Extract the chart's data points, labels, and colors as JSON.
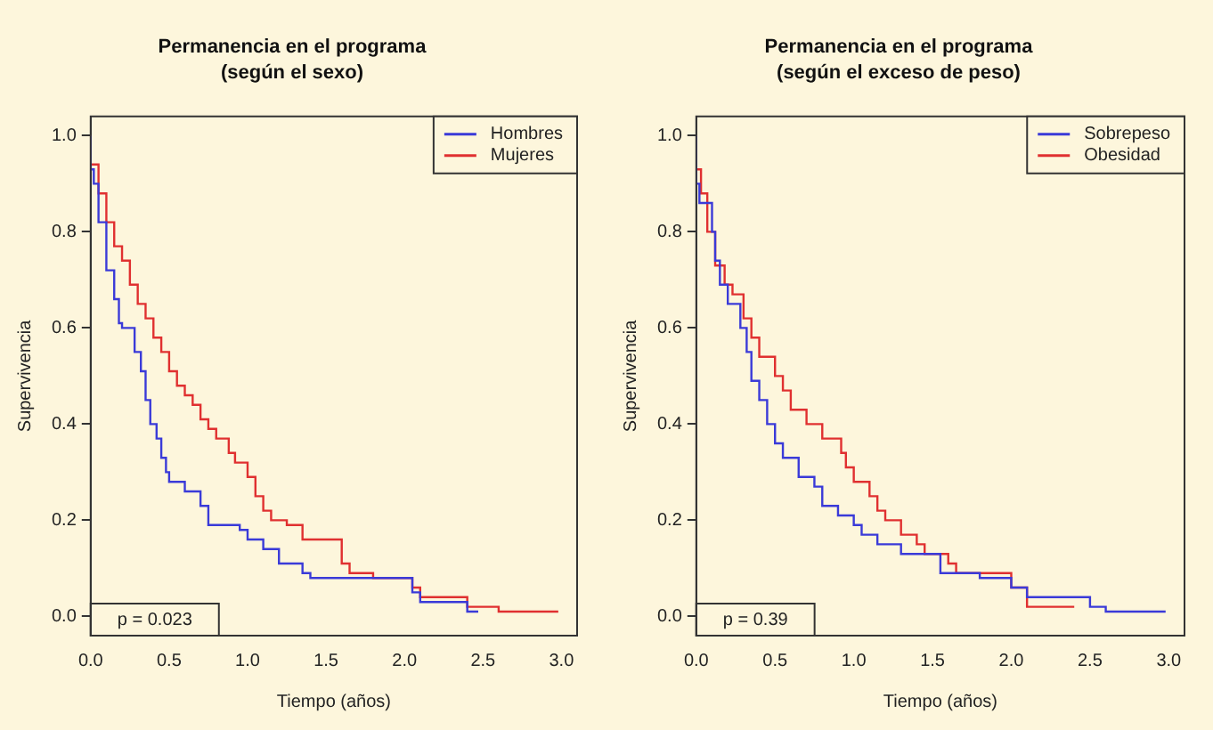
{
  "chart_data": [
    {
      "type": "step",
      "title": "Permanencia en el programa",
      "subtitle": "(según el sexo)",
      "xlabel": "Tiempo (años)",
      "ylabel": "Supervivencia",
      "legend": "top right",
      "grid": false,
      "annotations": [
        "p = 0.023"
      ],
      "xlim": [
        0,
        3.1
      ],
      "ylim": [
        -0.04,
        1.04
      ],
      "xticks": [
        {
          "value": 0,
          "label": "0.0"
        },
        {
          "value": 0.5,
          "label": "0.5"
        },
        {
          "value": 1,
          "label": "1.0"
        },
        {
          "value": 1.5,
          "label": "1.5"
        },
        {
          "value": 2,
          "label": "2.0"
        },
        {
          "value": 2.5,
          "label": "2.5"
        },
        {
          "value": 3,
          "label": "3.0"
        }
      ],
      "yticks": [
        {
          "value": 0,
          "label": "0.0"
        },
        {
          "value": 0.2,
          "label": "0.2"
        },
        {
          "value": 0.4,
          "label": "0.4"
        },
        {
          "value": 0.6,
          "label": "0.6"
        },
        {
          "value": 0.8,
          "label": "0.8"
        },
        {
          "value": 1,
          "label": "1.0"
        }
      ],
      "series": [
        {
          "name": "Hombres",
          "color": "#3a3ad8",
          "x": [
            0,
            0.02,
            0.05,
            0.1,
            0.15,
            0.18,
            0.2,
            0.28,
            0.32,
            0.35,
            0.38,
            0.42,
            0.45,
            0.48,
            0.5,
            0.6,
            0.7,
            0.75,
            0.95,
            1.0,
            1.1,
            1.2,
            1.35,
            1.4,
            2.05,
            2.1,
            2.4,
            2.47
          ],
          "values": [
            1.0,
            0.93,
            0.9,
            0.82,
            0.72,
            0.66,
            0.61,
            0.6,
            0.55,
            0.51,
            0.45,
            0.4,
            0.37,
            0.33,
            0.3,
            0.28,
            0.26,
            0.23,
            0.19,
            0.18,
            0.16,
            0.14,
            0.11,
            0.09,
            0.08,
            0.05,
            0.03,
            0.01
          ]
        },
        {
          "name": "Mujeres",
          "color": "#e03030",
          "x": [
            0,
            0.05,
            0.1,
            0.15,
            0.2,
            0.25,
            0.3,
            0.35,
            0.4,
            0.45,
            0.5,
            0.55,
            0.6,
            0.65,
            0.7,
            0.75,
            0.8,
            0.88,
            0.92,
            1.0,
            1.05,
            1.1,
            1.15,
            1.25,
            1.35,
            1.6,
            1.65,
            1.8,
            2.05,
            2.1,
            2.4,
            2.6,
            2.98
          ],
          "values": [
            1.0,
            0.94,
            0.88,
            0.82,
            0.77,
            0.74,
            0.69,
            0.65,
            0.62,
            0.58,
            0.55,
            0.51,
            0.48,
            0.46,
            0.44,
            0.41,
            0.39,
            0.37,
            0.34,
            0.32,
            0.29,
            0.25,
            0.22,
            0.2,
            0.19,
            0.16,
            0.11,
            0.09,
            0.08,
            0.06,
            0.04,
            0.02,
            0.01
          ]
        }
      ]
    },
    {
      "type": "step",
      "title": "Permanencia en el programa",
      "subtitle": "(según el exceso de peso)",
      "xlabel": "Tiempo (años)",
      "ylabel": "Supervivencia",
      "legend": "top right",
      "grid": false,
      "annotations": [
        "p = 0.39"
      ],
      "xlim": [
        0,
        3.1
      ],
      "ylim": [
        -0.04,
        1.04
      ],
      "xticks": [
        {
          "value": 0,
          "label": "0.0"
        },
        {
          "value": 0.5,
          "label": "0.5"
        },
        {
          "value": 1,
          "label": "1.0"
        },
        {
          "value": 1.5,
          "label": "1.5"
        },
        {
          "value": 2,
          "label": "2.0"
        },
        {
          "value": 2.5,
          "label": "2.5"
        },
        {
          "value": 3,
          "label": "3.0"
        }
      ],
      "yticks": [
        {
          "value": 0,
          "label": "0.0"
        },
        {
          "value": 0.2,
          "label": "0.2"
        },
        {
          "value": 0.4,
          "label": "0.4"
        },
        {
          "value": 0.6,
          "label": "0.6"
        },
        {
          "value": 0.8,
          "label": "0.8"
        },
        {
          "value": 1,
          "label": "1.0"
        }
      ],
      "series": [
        {
          "name": "Sobrepeso",
          "color": "#3a3ad8",
          "x": [
            0,
            0.02,
            0.1,
            0.12,
            0.15,
            0.2,
            0.28,
            0.32,
            0.35,
            0.4,
            0.45,
            0.5,
            0.55,
            0.65,
            0.75,
            0.8,
            0.9,
            1.0,
            1.05,
            1.15,
            1.3,
            1.55,
            1.8,
            2.0,
            2.1,
            2.5,
            2.6,
            2.98
          ],
          "values": [
            1.0,
            0.9,
            0.86,
            0.8,
            0.74,
            0.69,
            0.65,
            0.6,
            0.55,
            0.49,
            0.45,
            0.4,
            0.36,
            0.33,
            0.29,
            0.27,
            0.23,
            0.21,
            0.19,
            0.17,
            0.15,
            0.13,
            0.09,
            0.08,
            0.06,
            0.04,
            0.02,
            0.01
          ]
        },
        {
          "name": "Obesidad",
          "color": "#e03030",
          "x": [
            0,
            0.03,
            0.07,
            0.12,
            0.18,
            0.23,
            0.3,
            0.35,
            0.4,
            0.5,
            0.55,
            0.6,
            0.7,
            0.8,
            0.92,
            0.95,
            1.0,
            1.1,
            1.15,
            1.2,
            1.3,
            1.4,
            1.45,
            1.6,
            1.65,
            2.0,
            2.1,
            2.4
          ],
          "values": [
            1.0,
            0.93,
            0.88,
            0.8,
            0.73,
            0.69,
            0.67,
            0.62,
            0.58,
            0.54,
            0.5,
            0.47,
            0.43,
            0.4,
            0.37,
            0.34,
            0.31,
            0.28,
            0.25,
            0.22,
            0.2,
            0.17,
            0.15,
            0.13,
            0.11,
            0.09,
            0.06,
            0.02
          ]
        }
      ]
    }
  ]
}
